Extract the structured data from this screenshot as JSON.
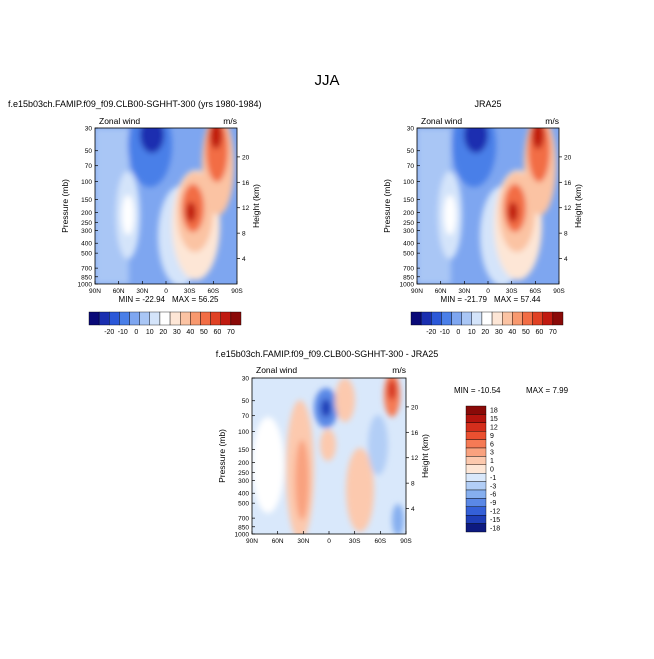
{
  "title": "JJA",
  "panels": [
    {
      "title": "f.e15b03ch.FAMIP.f09_f09.CLB00-SGHHT-300 (yrs 1980-1984)",
      "field_label": "Zonal wind",
      "units": "m/s",
      "min_label": "MIN = -22.94",
      "max_label": "MAX =  56.25"
    },
    {
      "title": "JRA25",
      "field_label": "Zonal wind",
      "units": "m/s",
      "min_label": "MIN = -21.79",
      "max_label": "MAX =  57.44"
    },
    {
      "title": "f.e15b03ch.FAMIP.f09_f09.CLB00-SGHHT-300 - JRA25",
      "field_label": "Zonal wind",
      "units": "m/s",
      "min_label": "MIN = -10.54",
      "max_label": "MAX =    7.99"
    }
  ],
  "chart_data": [
    {
      "type": "heatmap",
      "title": "f.e15b03ch.FAMIP.f09_f09.CLB00-SGHHT-300 (yrs 1980-1984)",
      "xlabel": "",
      "ylabel": "Pressure (mb)",
      "y2label": "Height (km)",
      "x_ticks": [
        "90N",
        "60N",
        "30N",
        "0",
        "30S",
        "60S",
        "90S"
      ],
      "y_ticks": [
        "30",
        "50",
        "70",
        "100",
        "150",
        "200",
        "250",
        "300",
        "400",
        "500",
        "700",
        "850",
        "1000"
      ],
      "y2_ticks": [
        "20",
        "16",
        "12",
        "8",
        "4"
      ],
      "y_scale": "log",
      "x_range": [
        90,
        -90
      ],
      "y_range": [
        1000,
        30
      ],
      "min": -22.94,
      "max": 56.25,
      "colorbar_levels": [
        "-20",
        "-10",
        "0",
        "10",
        "20",
        "30",
        "40",
        "50",
        "60",
        "70"
      ]
    },
    {
      "type": "heatmap",
      "title": "JRA25",
      "xlabel": "",
      "ylabel": "Pressure (mb)",
      "y2label": "Height (km)",
      "x_ticks": [
        "90N",
        "60N",
        "30N",
        "0",
        "30S",
        "60S",
        "90S"
      ],
      "y_ticks": [
        "30",
        "50",
        "70",
        "100",
        "150",
        "200",
        "250",
        "300",
        "400",
        "500",
        "700",
        "850",
        "1000"
      ],
      "y2_ticks": [
        "20",
        "16",
        "12",
        "8",
        "4"
      ],
      "y_scale": "log",
      "x_range": [
        90,
        -90
      ],
      "y_range": [
        1000,
        30
      ],
      "min": -21.79,
      "max": 57.44,
      "colorbar_levels": [
        "-20",
        "-10",
        "0",
        "10",
        "20",
        "30",
        "40",
        "50",
        "60",
        "70"
      ]
    },
    {
      "type": "heatmap",
      "title": "f.e15b03ch.FAMIP.f09_f09.CLB00-SGHHT-300 - JRA25",
      "xlabel": "",
      "ylabel": "Pressure (mb)",
      "y2label": "Height (km)",
      "x_ticks": [
        "90N",
        "60N",
        "30N",
        "0",
        "30S",
        "60S",
        "90S"
      ],
      "y_ticks": [
        "30",
        "50",
        "70",
        "100",
        "150",
        "200",
        "250",
        "300",
        "400",
        "500",
        "700",
        "850",
        "1000"
      ],
      "y2_ticks": [
        "20",
        "16",
        "12",
        "8",
        "4"
      ],
      "y_scale": "log",
      "x_range": [
        90,
        -90
      ],
      "y_range": [
        1000,
        30
      ],
      "min": -10.54,
      "max": 7.99,
      "colorbar_levels": [
        "18",
        "15",
        "12",
        "9",
        "6",
        "3",
        "1",
        "0",
        "-1",
        "-3",
        "-6",
        "-9",
        "-12",
        "-15",
        "-18"
      ]
    }
  ],
  "colors": {
    "full_palette": [
      "#0a0a78",
      "#1a2fb0",
      "#2b58d8",
      "#4a7fe8",
      "#7ea6f0",
      "#a9c6f5",
      "#d4e4fa",
      "#ffffff",
      "#fde6d6",
      "#fbc3a3",
      "#f8996f",
      "#f26d45",
      "#e04124",
      "#c01a10",
      "#8a0a08"
    ],
    "diff_palette": [
      "#8a0a08",
      "#b4140e",
      "#d42e1c",
      "#eb5030",
      "#f57a55",
      "#f9a27f",
      "#fcc9ae",
      "#fde6d6",
      "#d9e8fb",
      "#b2cef6",
      "#86afef",
      "#5a88e6",
      "#3460d8",
      "#1e3eb8",
      "#0d1a80"
    ]
  }
}
